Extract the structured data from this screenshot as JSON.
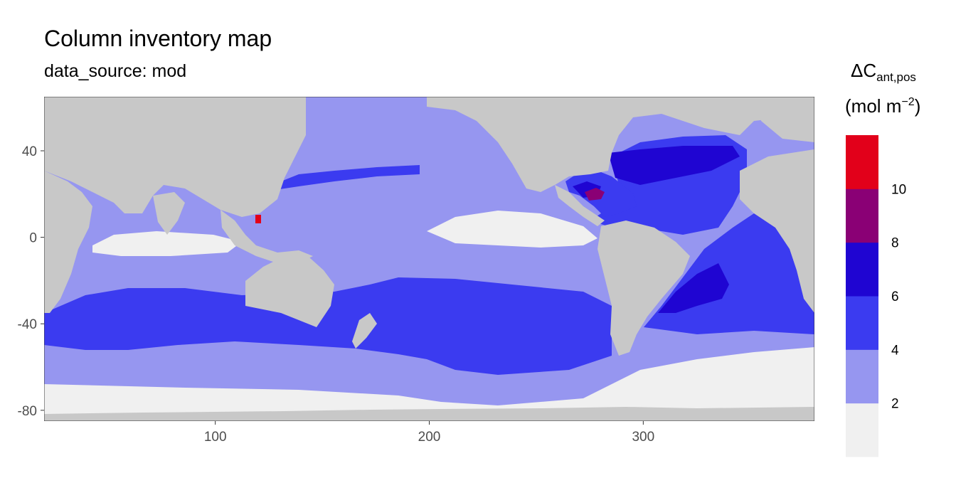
{
  "header": {
    "title": "Column inventory map",
    "subtitle": "data_source: mod"
  },
  "legend": {
    "title_main": "ΔC",
    "title_sub": "ant,pos",
    "unit_open": "(mol m",
    "unit_exp": "−2",
    "unit_close": ")",
    "bins": [
      {
        "range": "0-2",
        "color": "#F0F0F0"
      },
      {
        "range": "2-4",
        "color": "#9696F0"
      },
      {
        "range": "4-6",
        "color": "#3B3BF0"
      },
      {
        "range": "6-8",
        "color": "#1F05D2"
      },
      {
        "range": "8-10",
        "color": "#8A0075"
      },
      {
        "range": "10+",
        "color": "#E2001A"
      }
    ],
    "tick_labels": [
      "2",
      "4",
      "6",
      "8",
      "10"
    ]
  },
  "chart_data": {
    "type": "heatmap",
    "title": "Column inventory map",
    "subtitle": "data_source: mod",
    "xlabel": "",
    "ylabel": "",
    "xlim": [
      20,
      380
    ],
    "ylim": [
      -85,
      65
    ],
    "x_ticks": [
      100,
      200,
      300
    ],
    "y_ticks": [
      40,
      0,
      -40,
      -80
    ],
    "colors": {
      "land": "#C8C8C8",
      "panel_border": "#333333"
    },
    "regions": [
      {
        "name": "southern ocean band",
        "value_bin": "4-6",
        "lon": [
          20,
          380
        ],
        "lat": [
          -55,
          -35
        ]
      },
      {
        "name": "south atlantic subtropical",
        "value_bin": "6-8",
        "lon": [
          320,
          345
        ],
        "lat": [
          -40,
          -20
        ]
      },
      {
        "name": "north atlantic",
        "value_bin": "4-6",
        "lon": [
          280,
          350
        ],
        "lat": [
          25,
          55
        ]
      },
      {
        "name": "caribbean hotspot",
        "value_bin": "8-10",
        "lon": [
          272,
          282
        ],
        "lat": [
          17,
          22
        ]
      },
      {
        "name": "south china sea hotspot",
        "value_bin": "10+",
        "lon": [
          118,
          122
        ],
        "lat": [
          6,
          10
        ]
      },
      {
        "name": "equatorial pacific",
        "value_bin": "0-2",
        "lon": [
          190,
          290
        ],
        "lat": [
          -5,
          10
        ]
      },
      {
        "name": "southern ocean south",
        "value_bin": "0-2",
        "lon": [
          20,
          380
        ],
        "lat": [
          -80,
          -65
        ]
      }
    ]
  }
}
